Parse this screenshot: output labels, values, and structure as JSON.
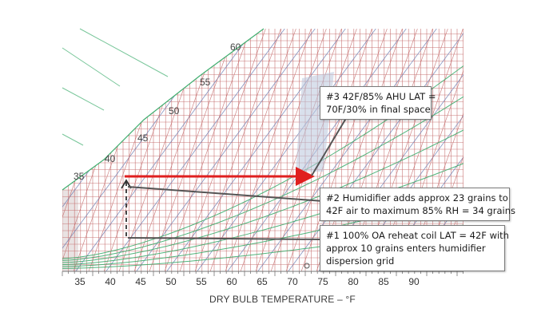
{
  "chart": {
    "xlabel": "DRY BULB TEMPERATURE – °F",
    "x_ticks": [
      "35",
      "40",
      "45",
      "50",
      "55",
      "60",
      "65",
      "70",
      "75",
      "80",
      "85",
      "90"
    ],
    "saturation_labels": [
      "35",
      "40",
      "45",
      "50",
      "55",
      "60"
    ],
    "colors": {
      "grid_red": "#c46a6a",
      "grid_blue": "#6f7fb4",
      "grid_green": "#3fae6f",
      "process_line": "#e01f1f",
      "leader": "#555555",
      "zone": "#b9c6dc"
    }
  },
  "callouts": {
    "c3": {
      "line1": "#3 42F/85% AHU LAT =",
      "line2": "70F/30% in final space"
    },
    "c2": {
      "line1": "#2 Humidifier adds approx 23 grains to",
      "line2": "42F air to maximum 85% RH = 34 grains"
    },
    "c1": {
      "line1": "#1 100% OA reheat coil LAT = 42F with",
      "line2": "approx 10 grains enters humidifier",
      "line3": "dispersion grid"
    }
  }
}
